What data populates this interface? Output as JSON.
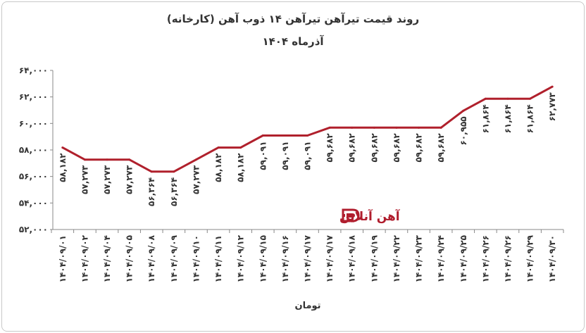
{
  "chart_data": {
    "type": "line",
    "title": "روند قیمت تیرآهن تیرآهن ۱۴ ذوب آهن (کارخانه)",
    "subtitle": "آذرماه ۱۴۰۴",
    "xlabel": "تومان",
    "ylabel": "",
    "ylim": [
      52000,
      64000
    ],
    "yticks": [
      "۵۲,۰۰۰",
      "۵۴,۰۰۰",
      "۵۶,۰۰۰",
      "۵۸,۰۰۰",
      "۶۰,۰۰۰",
      "۶۲,۰۰۰",
      "۶۴,۰۰۰"
    ],
    "ytick_values": [
      52000,
      54000,
      56000,
      58000,
      60000,
      62000,
      64000
    ],
    "grid": false,
    "line_color": "#b0202c",
    "categories": [
      "۱۴۰۴/۰۹/۰۱",
      "۱۴۰۴/۰۹/۰۲",
      "۱۴۰۴/۰۹/۰۴",
      "۱۴۰۴/۰۹/۰۵",
      "۱۴۰۴/۰۹/۰۸",
      "۱۴۰۴/۰۹/۰۹",
      "۱۴۰۴/۰۹/۱۰",
      "۱۴۰۴/۰۹/۱۱",
      "۱۴۰۴/۰۹/۱۲",
      "۱۴۰۴/۰۹/۱۵",
      "۱۴۰۴/۰۹/۱۶",
      "۱۴۰۴/۰۹/۱۷",
      "۱۴۰۴/۰۹/۱۷",
      "۱۴۰۴/۰۹/۱۸",
      "۱۴۰۴/۰۹/۱۹",
      "۱۴۰۴/۰۹/۲۲",
      "۱۴۰۴/۰۹/۲۳",
      "۱۴۰۴/۰۹/۲۴",
      "۱۴۰۴/۰۹/۲۵",
      "۱۴۰۴/۰۹/۲۶",
      "۱۴۰۴/۰۹/۲۶",
      "۱۴۰۴/۰۹/۲۹",
      "۱۴۰۴/۰۹/۳۰"
    ],
    "values": [
      58182,
      57273,
      57273,
      57273,
      56364,
      56364,
      57273,
      58182,
      58182,
      59091,
      59091,
      59091,
      59682,
      59682,
      59682,
      59682,
      59682,
      59682,
      60955,
      61864,
      61864,
      61864,
      62773
    ],
    "labels": [
      "۵۸,۱۸۲",
      "۵۷,۲۷۳",
      "۵۷,۲۷۳",
      "۵۷,۲۷۳",
      "۵۶,۳۶۴",
      "۵۶,۳۶۴",
      "۵۷,۲۷۳",
      "۵۸,۱۸۲",
      "۵۸,۱۸۲",
      "۵۹,۰۹۱",
      "۵۹,۰۹۱",
      "۵۹,۰۹۱",
      "۵۹,۶۸۲",
      "۵۹,۶۸۲",
      "۵۹,۶۸۲",
      "۵۹,۶۸۲",
      "۵۹,۶۸۲",
      "۵۹,۶۸۲",
      "۶۰,۹۵۵",
      "۶۱,۸۶۴",
      "۶۱,۸۶۴",
      "۶۱,۸۶۴",
      "۶۲,۷۷۳"
    ]
  },
  "watermark": {
    "text": "آهن آنلاین",
    "color": "#b01e2e"
  }
}
